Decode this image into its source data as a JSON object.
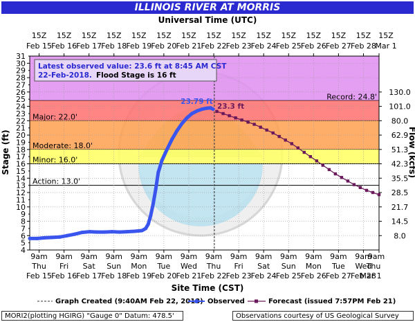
{
  "header": {
    "title": "ILLINOIS RIVER AT MORRIS",
    "top_axis_title": "Universal Time (UTC)",
    "bottom_axis_title": "Site Time (CST)"
  },
  "info_box": {
    "line1": "Latest observed value: 23.6 ft at 8:45 AM CST",
    "line2_date": "22-Feb-2018.",
    "line2_flood": "Flood Stage is 16 ft"
  },
  "legend": {
    "graph_created": "Graph Created (9:40AM Feb 22, 2018)",
    "observed": "Observed",
    "forecast": "Forecast (issued 7:57PM Feb 21)"
  },
  "footer": {
    "left": "MORI2(plotting HGIRG) \"Gauge 0\" Datum: 478.5'",
    "right": "Observations courtesy of US Geological Survey"
  },
  "colors": {
    "record": "#e08ef0",
    "major": "#ff7070",
    "moderate": "#ffa050",
    "minor": "#ffff60",
    "observed": "#3a55ee",
    "forecast": "#6a1a5a",
    "title_bg": "#2a2ad0"
  },
  "chart_data": {
    "type": "line",
    "ylabel": "Stage (ft)",
    "y2label": "Flow (kcfs)",
    "ylim": [
      4,
      31
    ],
    "xlim": [
      0,
      14
    ],
    "x_unit": "days from Feb 15 00:00 CST",
    "y_ticks": [
      4,
      6,
      8,
      10,
      12,
      14,
      16,
      18,
      20,
      22,
      24,
      26,
      28,
      30
    ],
    "y_minor_ticks": [
      5,
      7,
      9,
      11,
      13,
      15,
      17,
      19,
      21,
      23,
      25,
      27,
      29,
      31
    ],
    "flow_ticks": [
      {
        "stage": 6.0,
        "label": "8.0"
      },
      {
        "stage": 8.0,
        "label": "14.5"
      },
      {
        "stage": 10.0,
        "label": "21.7"
      },
      {
        "stage": 12.0,
        "label": "28.5"
      },
      {
        "stage": 14.0,
        "label": "35.5"
      },
      {
        "stage": 16.0,
        "label": "42.3"
      },
      {
        "stage": 18.0,
        "label": "51.3"
      },
      {
        "stage": 20.0,
        "label": "62.9"
      },
      {
        "stage": 22.0,
        "label": "80.0"
      },
      {
        "stage": 24.0,
        "label": "101.0"
      },
      {
        "stage": 26.0,
        "label": "130.0"
      }
    ],
    "bottom_ticks": [
      {
        "x": 0.375,
        "time": "9am",
        "day": "Thu",
        "date": "Feb 15"
      },
      {
        "x": 1.375,
        "time": "9am",
        "day": "Fri",
        "date": "Feb 16"
      },
      {
        "x": 2.375,
        "time": "9am",
        "day": "Sat",
        "date": "Feb 17"
      },
      {
        "x": 3.375,
        "time": "9am",
        "day": "Sun",
        "date": "Feb 18"
      },
      {
        "x": 4.375,
        "time": "9am",
        "day": "Mon",
        "date": "Feb 19"
      },
      {
        "x": 5.375,
        "time": "9am",
        "day": "Tue",
        "date": "Feb 20"
      },
      {
        "x": 6.375,
        "time": "9am",
        "day": "Wed",
        "date": "Feb 21"
      },
      {
        "x": 7.375,
        "time": "9am",
        "day": "Thu",
        "date": "Feb 22"
      },
      {
        "x": 8.375,
        "time": "9am",
        "day": "Fri",
        "date": "Feb 23"
      },
      {
        "x": 9.375,
        "time": "9am",
        "day": "Sat",
        "date": "Feb 24"
      },
      {
        "x": 10.375,
        "time": "9am",
        "day": "Sun",
        "date": "Feb 25"
      },
      {
        "x": 11.375,
        "time": "9am",
        "day": "Mon",
        "date": "Feb 26"
      },
      {
        "x": 12.375,
        "time": "9am",
        "day": "Tue",
        "date": "Feb 27"
      },
      {
        "x": 13.375,
        "time": "9am",
        "day": "Wed",
        "date": "Feb 28"
      },
      {
        "x": 14.375,
        "time": "9am",
        "day": "Thu",
        "date": "Mar 1"
      }
    ],
    "top_ticks": [
      {
        "x": 0.375,
        "time": "15Z",
        "date": "Feb 15"
      },
      {
        "x": 1.375,
        "time": "15Z",
        "date": "Feb 16"
      },
      {
        "x": 2.375,
        "time": "15Z",
        "date": "Feb 17"
      },
      {
        "x": 3.375,
        "time": "15Z",
        "date": "Feb 18"
      },
      {
        "x": 4.375,
        "time": "15Z",
        "date": "Feb 19"
      },
      {
        "x": 5.375,
        "time": "15Z",
        "date": "Feb 20"
      },
      {
        "x": 6.375,
        "time": "15Z",
        "date": "Feb 21"
      },
      {
        "x": 7.375,
        "time": "15Z",
        "date": "Feb 22"
      },
      {
        "x": 8.375,
        "time": "15Z",
        "date": "Feb 23"
      },
      {
        "x": 9.375,
        "time": "15Z",
        "date": "Feb 24"
      },
      {
        "x": 10.375,
        "time": "15Z",
        "date": "Feb 25"
      },
      {
        "x": 11.375,
        "time": "15Z",
        "date": "Feb 26"
      },
      {
        "x": 12.375,
        "time": "15Z",
        "date": "Feb 27"
      },
      {
        "x": 13.375,
        "time": "15Z",
        "date": "Feb 28"
      },
      {
        "x": 14.375,
        "time": "15Z",
        "date": "Mar 1"
      }
    ],
    "bands": [
      {
        "name": "Record",
        "from": 24.8,
        "to": 31,
        "label": "Record: 24.8'"
      },
      {
        "name": "Major",
        "from": 22.0,
        "to": 24.8,
        "label": "Major: 22.0'"
      },
      {
        "name": "Moderate",
        "from": 18.0,
        "to": 22.0,
        "label": "Moderate: 18.0'"
      },
      {
        "name": "Minor",
        "from": 16.0,
        "to": 18.0,
        "label": "Minor: 16.0'"
      },
      {
        "name": "Action",
        "from": 13.0,
        "to": 16.0,
        "label": "Action: 13.0'"
      }
    ],
    "graph_created_x": 7.4,
    "crest_observed": {
      "x": 7.25,
      "y": 23.79,
      "label": "23.79 ft"
    },
    "crest_forecast": {
      "x": 7.5,
      "y": 23.3,
      "label": "23.3 ft"
    },
    "series": [
      {
        "name": "Observed",
        "points": [
          [
            0.0,
            5.6
          ],
          [
            0.3,
            5.6
          ],
          [
            0.6,
            5.7
          ],
          [
            0.9,
            5.75
          ],
          [
            1.2,
            5.8
          ],
          [
            1.5,
            6.0
          ],
          [
            1.8,
            6.2
          ],
          [
            2.1,
            6.45
          ],
          [
            2.4,
            6.55
          ],
          [
            2.7,
            6.5
          ],
          [
            3.0,
            6.5
          ],
          [
            3.3,
            6.55
          ],
          [
            3.6,
            6.5
          ],
          [
            3.9,
            6.55
          ],
          [
            4.2,
            6.6
          ],
          [
            4.5,
            6.7
          ],
          [
            4.65,
            7.0
          ],
          [
            4.75,
            7.6
          ],
          [
            4.85,
            8.8
          ],
          [
            4.95,
            10.5
          ],
          [
            5.05,
            12.5
          ],
          [
            5.15,
            14.8
          ],
          [
            5.3,
            16.5
          ],
          [
            5.5,
            18.0
          ],
          [
            5.7,
            19.4
          ],
          [
            5.9,
            20.6
          ],
          [
            6.1,
            21.6
          ],
          [
            6.3,
            22.4
          ],
          [
            6.5,
            23.0
          ],
          [
            6.7,
            23.35
          ],
          [
            6.9,
            23.6
          ],
          [
            7.1,
            23.75
          ],
          [
            7.25,
            23.79
          ],
          [
            7.35,
            23.6
          ]
        ]
      },
      {
        "name": "Forecast",
        "points": [
          [
            7.5,
            23.3
          ],
          [
            7.75,
            23.0
          ],
          [
            8.0,
            22.7
          ],
          [
            8.25,
            22.4
          ],
          [
            8.5,
            22.1
          ],
          [
            8.75,
            21.8
          ],
          [
            9.0,
            21.5
          ],
          [
            9.25,
            21.1
          ],
          [
            9.5,
            20.7
          ],
          [
            9.75,
            20.3
          ],
          [
            10.0,
            19.8
          ],
          [
            10.25,
            19.3
          ],
          [
            10.5,
            18.8
          ],
          [
            10.75,
            18.2
          ],
          [
            11.0,
            17.6
          ],
          [
            11.25,
            17.0
          ],
          [
            11.5,
            16.4
          ],
          [
            11.75,
            15.8
          ],
          [
            12.0,
            15.2
          ],
          [
            12.25,
            14.6
          ],
          [
            12.5,
            14.1
          ],
          [
            12.75,
            13.6
          ],
          [
            13.0,
            13.1
          ],
          [
            13.25,
            12.7
          ],
          [
            13.5,
            12.3
          ],
          [
            13.75,
            12.0
          ],
          [
            14.0,
            11.7
          ]
        ]
      }
    ]
  }
}
